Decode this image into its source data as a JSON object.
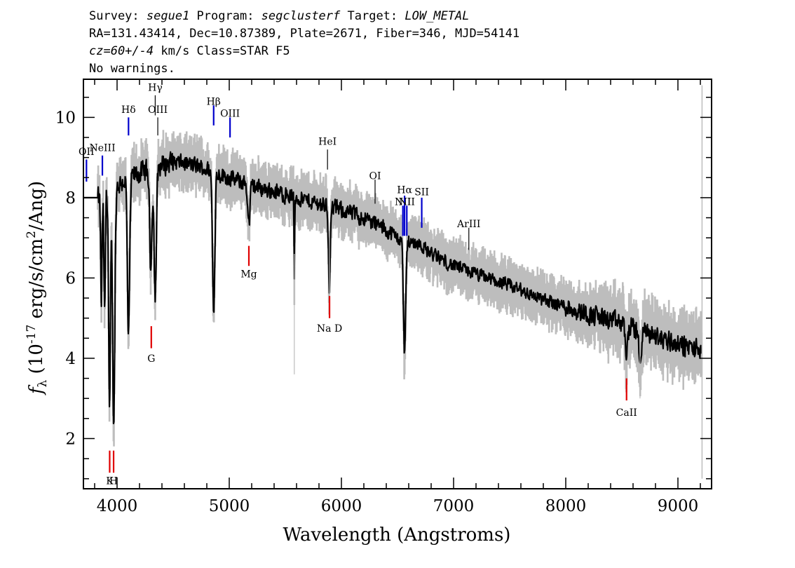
{
  "header": {
    "line1": {
      "survey_label": "Survey: ",
      "survey": "segue1",
      "program_label": " Program: ",
      "program": "segclusterf",
      "target_label": " Target: ",
      "target": "LOW_METAL"
    },
    "line2": "RA=131.43414, Dec=10.87389, Plate=2671, Fiber=346, MJD=54141",
    "line3": {
      "cz": "cz=60+/-4",
      "rest": " km/s Class=STAR F5"
    },
    "line4": "No warnings."
  },
  "chart_data": {
    "type": "line",
    "xlabel": "Wavelength (Angstroms)",
    "ylabel_sym": "f",
    "ylabel_sub": "λ",
    "ylabel_pre": " (10",
    "ylabel_exp": "-17",
    "ylabel_mid": " erg/s/cm",
    "ylabel_exp2": "2",
    "ylabel_post": "/Ang)",
    "xlim": [
      3700,
      9300
    ],
    "ylim": [
      0.75,
      10.95
    ],
    "xticks": [
      4000,
      5000,
      6000,
      7000,
      8000,
      9000
    ],
    "yticks": [
      2,
      4,
      6,
      8,
      10
    ],
    "colors": {
      "flux": "#000000",
      "noise": "#bdbdbd",
      "emission": "#0000cc",
      "absorption": "#e00000",
      "other": "#000000"
    },
    "continuum": [
      [
        3700,
        8.0
      ],
      [
        3830,
        8.0
      ],
      [
        3860,
        7.9
      ],
      [
        3900,
        8.1
      ],
      [
        4000,
        8.3
      ],
      [
        4100,
        8.5
      ],
      [
        4200,
        8.6
      ],
      [
        4300,
        8.7
      ],
      [
        4400,
        8.8
      ],
      [
        4500,
        8.9
      ],
      [
        4600,
        8.85
      ],
      [
        4700,
        8.8
      ],
      [
        4800,
        8.7
      ],
      [
        4900,
        8.6
      ],
      [
        5000,
        8.5
      ],
      [
        5200,
        8.3
      ],
      [
        5400,
        8.15
      ],
      [
        5600,
        8.0
      ],
      [
        5800,
        7.85
      ],
      [
        6000,
        7.7
      ],
      [
        6200,
        7.5
      ],
      [
        6400,
        7.2
      ],
      [
        6500,
        7.0
      ],
      [
        6600,
        6.9
      ],
      [
        6700,
        6.85
      ],
      [
        6800,
        6.6
      ],
      [
        7000,
        6.3
      ],
      [
        7200,
        6.1
      ],
      [
        7400,
        5.9
      ],
      [
        7600,
        5.7
      ],
      [
        7800,
        5.45
      ],
      [
        8000,
        5.3
      ],
      [
        8200,
        5.1
      ],
      [
        8400,
        4.95
      ],
      [
        8600,
        4.75
      ],
      [
        8800,
        4.55
      ],
      [
        9000,
        4.35
      ],
      [
        9200,
        4.2
      ]
    ],
    "absorption_features": [
      {
        "center": 3860,
        "depth": 2.5,
        "width": 6
      },
      {
        "center": 3889,
        "depth": 3.0,
        "width": 6
      },
      {
        "center": 3933,
        "depth": 5.5,
        "width": 8
      },
      {
        "center": 3970,
        "depth": 5.8,
        "width": 10
      },
      {
        "center": 4102,
        "depth": 4.0,
        "width": 10
      },
      {
        "center": 4300,
        "depth": 2.4,
        "width": 10
      },
      {
        "center": 4340,
        "depth": 3.2,
        "width": 10
      },
      {
        "center": 4861,
        "depth": 3.5,
        "width": 10
      },
      {
        "center": 5175,
        "depth": 1.0,
        "width": 10
      },
      {
        "center": 5580,
        "depth": 2.0,
        "width": 3
      },
      {
        "center": 5893,
        "depth": 2.0,
        "width": 8
      },
      {
        "center": 6563,
        "depth": 2.8,
        "width": 10
      },
      {
        "center": 8542,
        "depth": 0.7,
        "width": 10
      },
      {
        "center": 8662,
        "depth": 0.9,
        "width": 10
      }
    ],
    "spikes": [
      {
        "x": 5580,
        "y0": 6.6,
        "y1": 3.6
      },
      {
        "x": 5893,
        "y0": 7.0,
        "y1": 5.0
      },
      {
        "x": 8662,
        "y0": 4.4,
        "y1": 3.0
      }
    ],
    "right_edge_line": {
      "x": 9215,
      "y0": 1.0,
      "y1": 10.8
    },
    "line_labels": [
      {
        "text": "OII",
        "x": 3727,
        "y": 9.15,
        "kind": "emission",
        "tick": [
          8.4,
          8.95
        ]
      },
      {
        "text": "NeIII",
        "x": 3869,
        "y": 9.25,
        "kind": "emission",
        "tick": [
          8.55,
          9.05
        ]
      },
      {
        "text": "Hδ",
        "x": 4102,
        "y": 10.2,
        "kind": "emission",
        "tick": [
          9.55,
          10.0
        ]
      },
      {
        "text": "Hγ",
        "x": 4340,
        "y": 10.75,
        "kind": "other",
        "tick": [
          10.05,
          10.55
        ]
      },
      {
        "text": "OIII",
        "x": 4363,
        "y": 10.2,
        "kind": "other",
        "tick": [
          9.55,
          10.0
        ]
      },
      {
        "text": "Hβ",
        "x": 4861,
        "y": 10.4,
        "kind": "emission",
        "tick": [
          9.8,
          10.3
        ]
      },
      {
        "text": "OIII",
        "x": 5007,
        "y": 10.1,
        "kind": "emission",
        "tick": [
          9.5,
          10.0
        ]
      },
      {
        "text": "HeI",
        "x": 5876,
        "y": 9.4,
        "kind": "other",
        "tick": [
          8.7,
          9.2
        ]
      },
      {
        "text": "OI",
        "x": 6300,
        "y": 8.55,
        "kind": "other",
        "tick": [
          7.85,
          8.45
        ]
      },
      {
        "text": "NII",
        "x": 6548,
        "y": 7.9,
        "kind": "emission",
        "tick": [
          7.05,
          7.8
        ]
      },
      {
        "text": "Hα",
        "x": 6563,
        "y": 8.2,
        "kind": "emission",
        "tick": [
          7.05,
          8.05
        ]
      },
      {
        "text": "NII",
        "x": 6583,
        "y": 7.9,
        "kind": "emission",
        "tick": [
          7.05,
          7.8
        ]
      },
      {
        "text": "SII",
        "x": 6716,
        "y": 8.15,
        "kind": "emission",
        "tick": [
          7.25,
          8.0
        ]
      },
      {
        "text": "ArIII",
        "x": 7136,
        "y": 7.35,
        "kind": "other",
        "tick": [
          6.7,
          7.25
        ]
      },
      {
        "text": "K",
        "x": 3934,
        "y": 0.95,
        "kind": "absorption",
        "tick": [
          1.15,
          1.7
        ]
      },
      {
        "text": "H",
        "x": 3969,
        "y": 0.95,
        "kind": "absorption",
        "tick": [
          1.15,
          1.7
        ]
      },
      {
        "text": "G",
        "x": 4305,
        "y": 4.0,
        "kind": "absorption",
        "tick": [
          4.25,
          4.8
        ]
      },
      {
        "text": "Mg",
        "x": 5175,
        "y": 6.1,
        "kind": "absorption",
        "tick": [
          6.3,
          6.8
        ]
      },
      {
        "text": "Na D",
        "x": 5894,
        "y": 4.75,
        "kind": "absorption",
        "tick": [
          5.0,
          5.55
        ]
      },
      {
        "text": "CaII",
        "x": 8542,
        "y": 2.65,
        "kind": "absorption",
        "tick": [
          2.95,
          3.5
        ]
      }
    ]
  }
}
